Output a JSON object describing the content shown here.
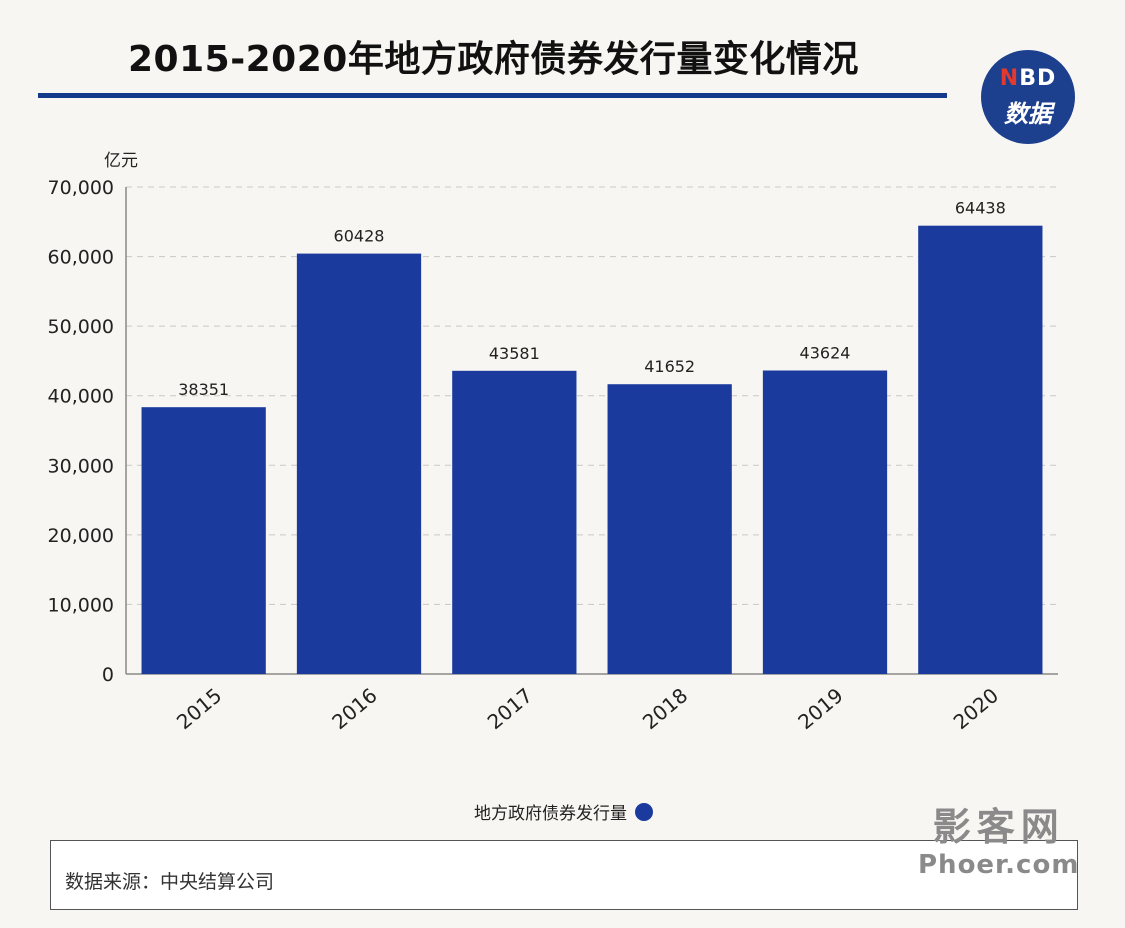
{
  "title": "2015-2020年地方政府债券发行量变化情况",
  "logo": {
    "line1_n": "N",
    "line1_rest": "BD",
    "line2": "数据"
  },
  "brand_color": "#143a8a",
  "bar_color": "#1a3a9e",
  "chart_data": {
    "type": "bar",
    "categories": [
      "2015",
      "2016",
      "2017",
      "2018",
      "2019",
      "2020"
    ],
    "series": [
      {
        "name": "地方政府债券发行量",
        "values": [
          38351,
          60428,
          43581,
          41652,
          43624,
          64438
        ]
      }
    ],
    "ylabel": "亿元",
    "ylim": [
      0,
      70000
    ],
    "yticks": [
      0,
      10000,
      20000,
      30000,
      40000,
      50000,
      60000,
      70000
    ],
    "ytick_labels": [
      "0",
      "10,000",
      "20,000",
      "30,000",
      "40,000",
      "50,000",
      "60,000",
      "70,000"
    ],
    "grid": true,
    "legend": "bottom"
  },
  "source": "数据来源：中央结算公司",
  "watermark_site": {
    "line1": "影客网",
    "line2": "Phoer.com"
  }
}
